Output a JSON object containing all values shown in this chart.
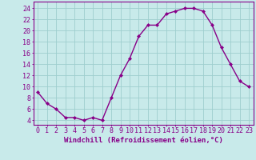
{
  "x": [
    0,
    1,
    2,
    3,
    4,
    5,
    6,
    7,
    8,
    9,
    10,
    11,
    12,
    13,
    14,
    15,
    16,
    17,
    18,
    19,
    20,
    21,
    22,
    23
  ],
  "y": [
    9,
    7,
    6,
    4.5,
    4.5,
    4,
    4.5,
    4,
    8,
    12,
    15,
    19,
    21,
    21,
    23,
    23.5,
    24,
    24,
    23.5,
    21,
    17,
    14,
    11,
    10
  ],
  "line_color": "#880088",
  "marker": "D",
  "marker_size": 2.0,
  "bg_color": "#c8eaea",
  "grid_color": "#9ecece",
  "xlabel": "Windchill (Refroidissement éolien,°C)",
  "xlabel_color": "#880088",
  "ylabel_ticks": [
    4,
    6,
    8,
    10,
    12,
    14,
    16,
    18,
    20,
    22,
    24
  ],
  "ylim": [
    3.2,
    25.2
  ],
  "xlim": [
    -0.5,
    23.5
  ],
  "spine_color": "#880088",
  "tick_color": "#880088",
  "xlabel_fontsize": 6.5,
  "tick_fontsize": 6.0,
  "linewidth": 1.0
}
